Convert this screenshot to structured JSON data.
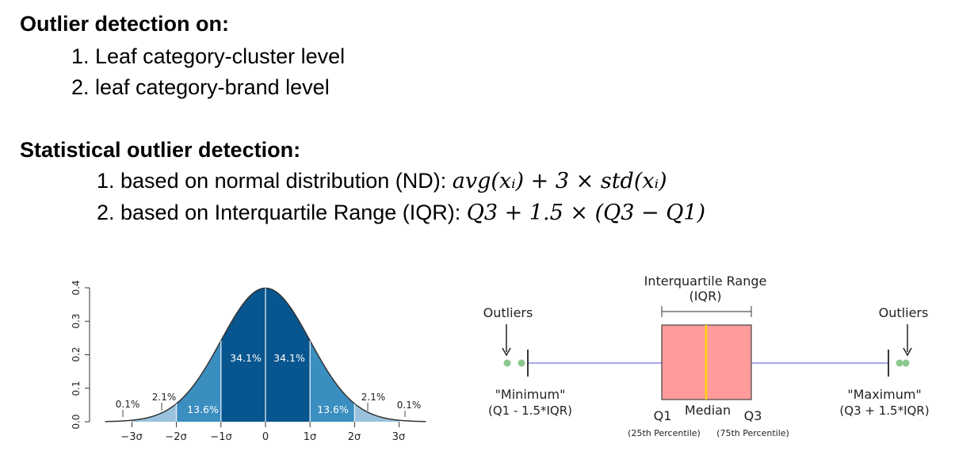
{
  "sections": {
    "outlier_heading": "Outlier detection on:",
    "outlier_items": [
      "1. Leaf category-cluster level",
      "2. leaf category-brand level"
    ],
    "stat_heading": "Statistical outlier detection:",
    "stat_items": [
      {
        "text": "1. based on normal distribution (ND): ",
        "formula": "avg(xᵢ) + 3 × std(xᵢ)"
      },
      {
        "text": "2. based on Interquartile Range (IQR): ",
        "formula": "Q3 + 1.5 × (Q3 − Q1)"
      }
    ]
  },
  "normal_chart": {
    "y_ticks": [
      "0.0",
      "0.1",
      "0.2",
      "0.3",
      "0.4"
    ],
    "x_ticks": [
      "−3σ",
      "−2σ",
      "−1σ",
      "0",
      "1σ",
      "2σ",
      "3σ"
    ],
    "band_labels": {
      "center_left": "34.1%",
      "center_right": "34.1%",
      "mid_left": "13.6%",
      "mid_right": "13.6%",
      "tail_left": "2.1%",
      "tail_right": "2.1%",
      "far_left": "0.1%",
      "far_right": "0.1%"
    },
    "colors": {
      "dark": "#08568f",
      "mid": "#3b8ec0",
      "light": "#9ac2dd"
    }
  },
  "boxplot": {
    "iqr_label_line1": "Interquartile Range",
    "iqr_label_line2": "(IQR)",
    "outliers_left": "Outliers",
    "outliers_right": "Outliers",
    "minimum_label": "\"Minimum\"",
    "minimum_formula": "(Q1 - 1.5*IQR)",
    "maximum_label": "\"Maximum\"",
    "maximum_formula": "(Q3 + 1.5*IQR)",
    "q1_label": "Q1",
    "median_label": "Median",
    "q3_label": "Q3",
    "q1_percentile": "(25th Percentile)",
    "q3_percentile": "(75th Percentile)",
    "colors": {
      "box": "#ff9b9b",
      "median": "#ffd700",
      "whisker": "#9c9cf0",
      "outlier": "#8dc78d"
    }
  }
}
